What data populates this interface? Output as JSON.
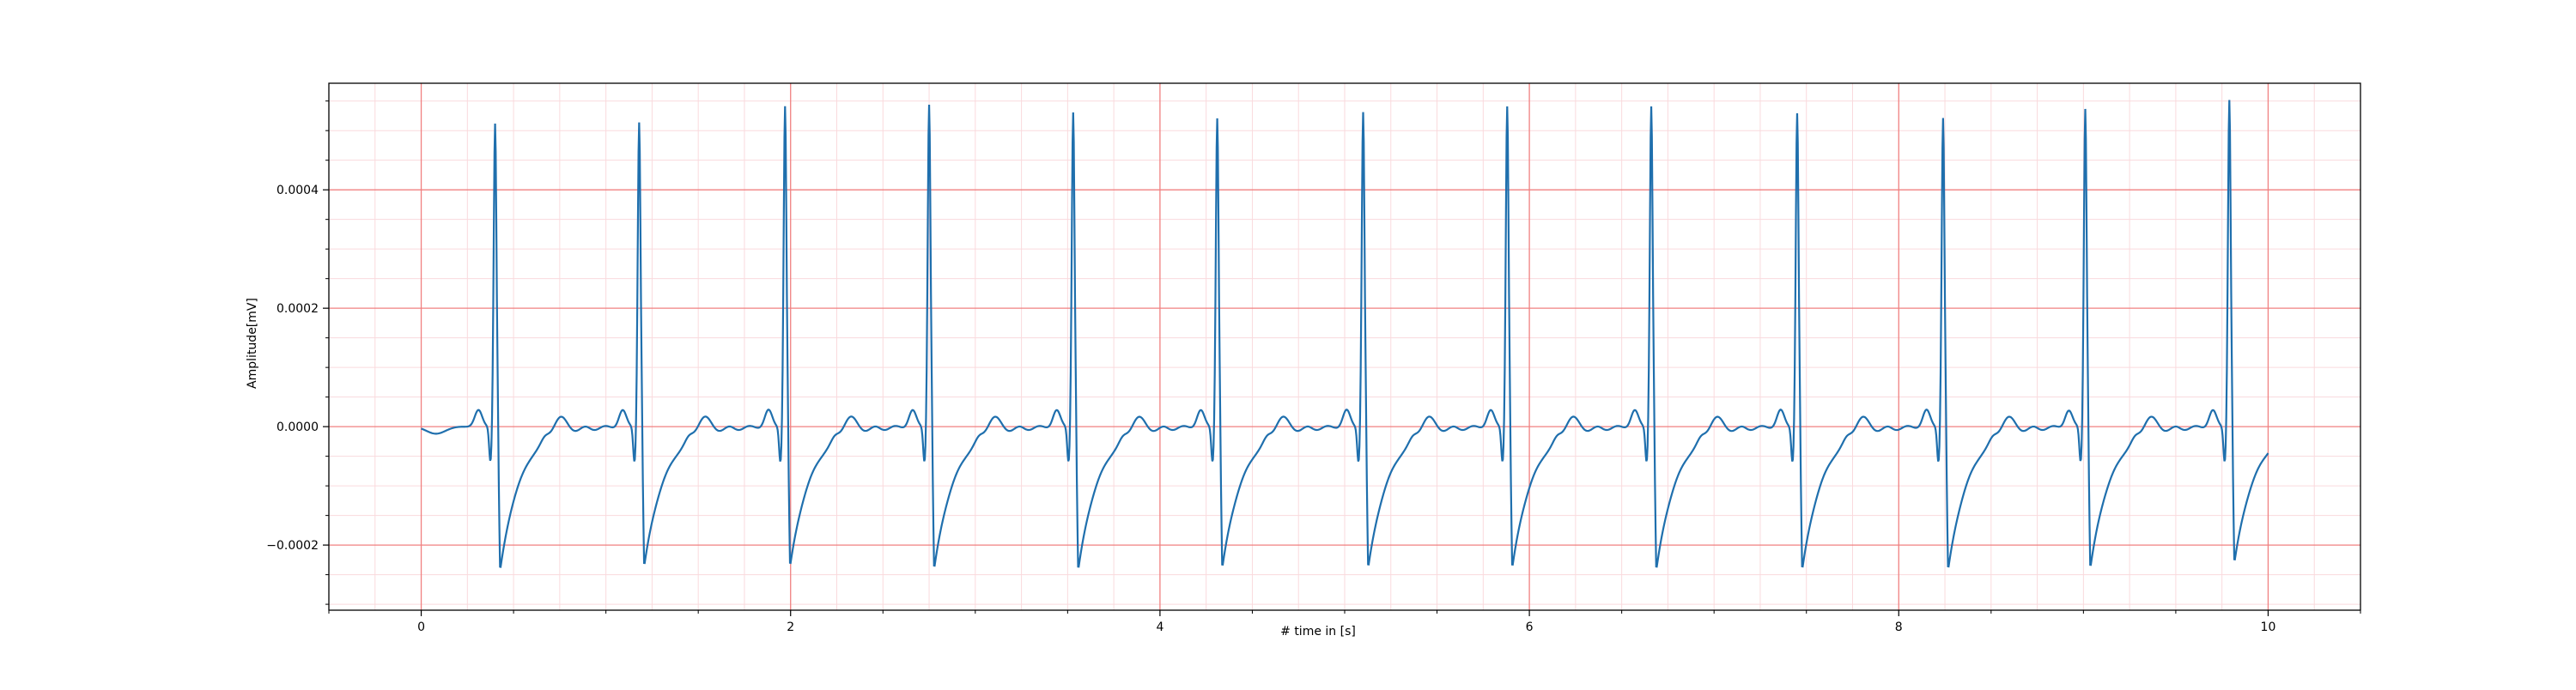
{
  "chart_data": {
    "type": "line",
    "title": "",
    "xlabel": "# time in [s]",
    "ylabel": "Amplitude[mV]",
    "xlim": [
      -0.5,
      10.5
    ],
    "ylim": [
      -0.00031,
      0.00058
    ],
    "x_ticks": [
      0,
      2,
      4,
      6,
      8,
      10
    ],
    "x_tick_labels": [
      "0",
      "2",
      "4",
      "6",
      "8",
      "10"
    ],
    "y_ticks": [
      -0.0002,
      0.0,
      0.0002,
      0.0004
    ],
    "y_tick_labels": [
      "−0.0002",
      "0.0000",
      "0.0002",
      "0.0004"
    ],
    "grid": true,
    "minor_grid": true,
    "legend": "none",
    "colors": {
      "line": "#1f6fad",
      "major_grid": "#f08080",
      "minor_grid": "#fadadd",
      "axes": "#000000"
    },
    "series": [
      {
        "beat_times_s": [
          0.4,
          1.18,
          1.97,
          2.75,
          3.53,
          4.31,
          5.1,
          5.88,
          6.66,
          7.45,
          8.24,
          9.01,
          9.79
        ],
        "r_peak_mV": [
          0.000512,
          0.000515,
          0.000542,
          0.000545,
          0.000532,
          0.000522,
          0.000532,
          0.000542,
          0.000542,
          0.00053,
          0.000522,
          0.000538,
          0.000553
        ],
        "s_trough_mV": [
          -0.000272,
          -0.000265,
          -0.000265,
          -0.00027,
          -0.000272,
          -0.000268,
          -0.000268,
          -0.000268,
          -0.000272,
          -0.000272,
          -0.000272,
          -0.000268,
          -0.000258
        ],
        "q_dip_mV": -6e-05,
        "p_wave_mV": 2.8e-05,
        "baseline_mV": 0.0,
        "x_start": 0.0,
        "x_end": 10.0
      }
    ]
  }
}
